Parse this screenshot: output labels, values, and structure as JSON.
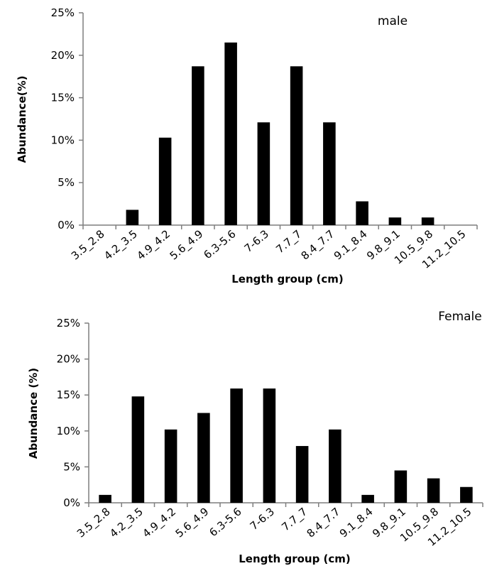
{
  "chart_data": [
    {
      "type": "bar",
      "title": "male",
      "xlabel": "Length group (cm)",
      "ylabel": "Abundance(%)",
      "ylim": [
        0,
        25
      ],
      "yticks": [
        "0%",
        "5%",
        "10%",
        "15%",
        "20%",
        "25%"
      ],
      "grid": false,
      "bar_color": "#000000",
      "categories": [
        "3.5_2.8",
        "4.2_3.5",
        "4.9_4.2",
        "5.6_4.9",
        "6.3-5.6",
        "7-6.3",
        "7.7_7",
        "8.4_7.7",
        "9.1_8.4",
        "9.8_9.1",
        "10.5_9.8",
        "11.2_10.5"
      ],
      "values": [
        0,
        1.8,
        10.3,
        18.7,
        21.5,
        12.1,
        18.7,
        12.1,
        2.8,
        0.9,
        0.9,
        0
      ]
    },
    {
      "type": "bar",
      "title": "Female",
      "xlabel": "Length group (cm)",
      "ylabel": "Abundance (%)",
      "ylim": [
        0,
        25
      ],
      "yticks": [
        "0%",
        "5%",
        "10%",
        "15%",
        "20%",
        "25%"
      ],
      "grid": false,
      "bar_color": "#000000",
      "categories": [
        "3.5_2.8",
        "4.2_3.5",
        "4.9_4.2",
        "5.6_4.9",
        "6.3-5.6",
        "7-6.3",
        "7.7_7",
        "8.4_7.7",
        "9.1_8.4",
        "9.8_9.1",
        "10.5_9.8",
        "11.2_10.5"
      ],
      "values": [
        1.1,
        14.8,
        10.2,
        12.5,
        15.9,
        15.9,
        7.9,
        10.2,
        1.1,
        4.5,
        3.4,
        2.2
      ]
    }
  ]
}
